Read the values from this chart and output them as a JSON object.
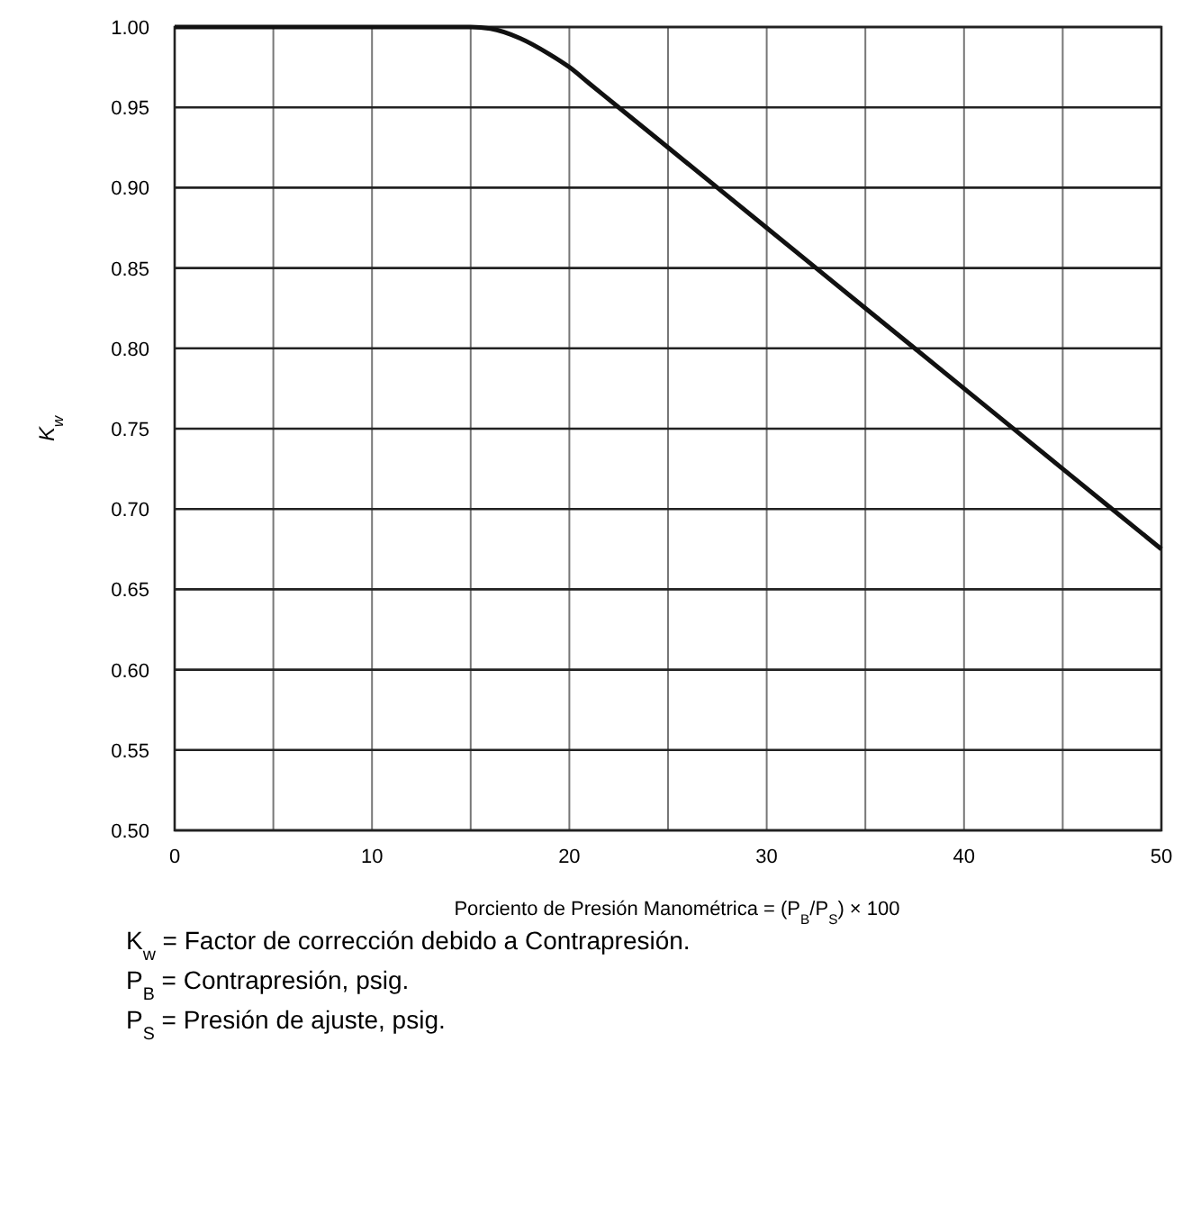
{
  "chart_data": {
    "type": "line",
    "xlabel": "Porciento de Presión Manométrica = (P$_{B}$/P$_{S}$) × 100",
    "ylabel": "K$_{w}$",
    "x": [
      0,
      15,
      16,
      17.5,
      19,
      20,
      21,
      22.5,
      25,
      30,
      35,
      40,
      45,
      50
    ],
    "series": [
      {
        "color": "#111111",
        "values": [
          1.0,
          1.0,
          0.999,
          0.993,
          0.983,
          0.975,
          0.965,
          0.95,
          0.925,
          0.875,
          0.825,
          0.775,
          0.725,
          0.675
        ]
      }
    ],
    "xlim": [
      0,
      50
    ],
    "ylim": [
      0.5,
      1.0
    ],
    "xticks": [
      0,
      {
        "value": 5,
        "label": null
      },
      10,
      {
        "value": 15,
        "label": null
      },
      20,
      {
        "value": 25,
        "label": null
      },
      30,
      {
        "value": 35,
        "label": null
      },
      40,
      {
        "value": 45,
        "label": null
      },
      50
    ],
    "yticks": [
      {
        "value": 0.5,
        "label": "0.50"
      },
      {
        "value": 0.55,
        "label": "0.55"
      },
      {
        "value": 0.6,
        "label": "0.60"
      },
      {
        "value": 0.65,
        "label": "0.65"
      },
      {
        "value": 0.7,
        "label": "0.70"
      },
      {
        "value": 0.75,
        "label": "0.75"
      },
      {
        "value": 0.8,
        "label": "0.80"
      },
      {
        "value": 0.85,
        "label": "0.85"
      },
      {
        "value": 0.9,
        "label": "0.90"
      },
      {
        "value": 0.95,
        "label": "0.95"
      },
      {
        "value": 1.0,
        "label": "1.00"
      }
    ],
    "grid": true,
    "marker": "none",
    "line_style": "solid",
    "annotations": [
      "K$_{w}$ = Factor de corrección debido a Contrapresión.",
      "P$_{B}$ = Contrapresión, psig.",
      "P$_{S}$ = Presión de ajuste, psig."
    ]
  }
}
